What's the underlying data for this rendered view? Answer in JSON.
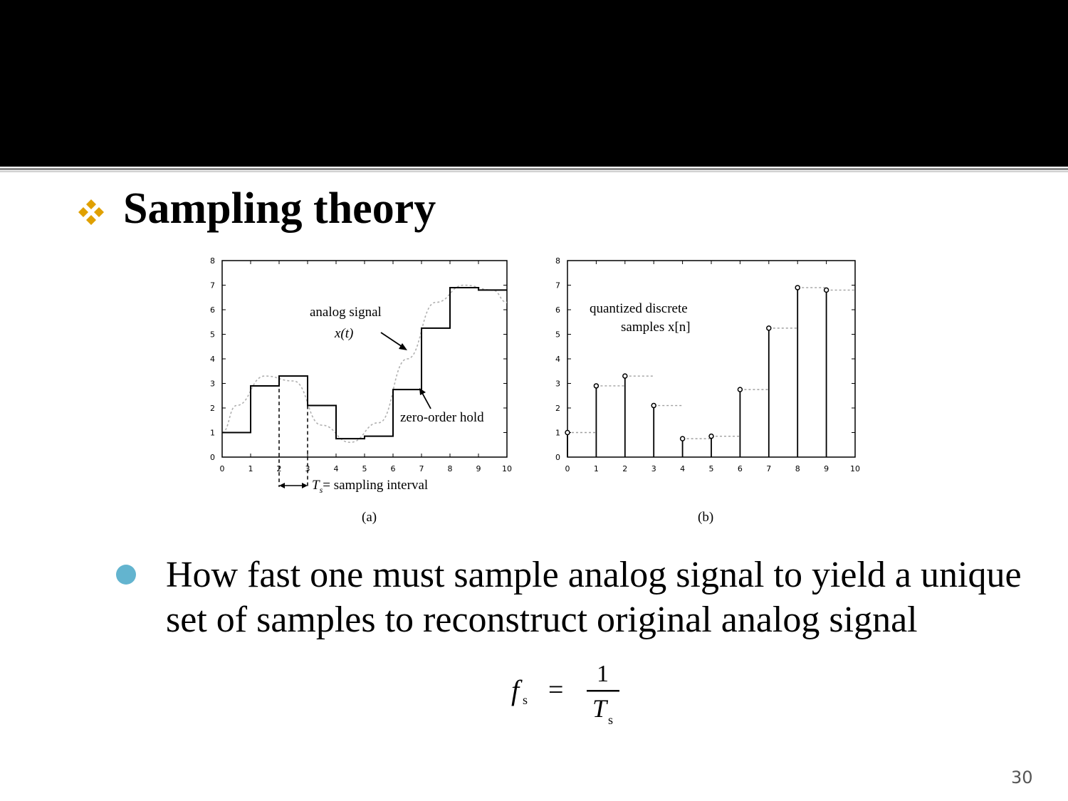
{
  "slide": {
    "heading": "Sampling theory",
    "bullet_text": "How fast one must sample analog signal to yield a unique set of samples to reconstruct original analog signal",
    "slide_number": "30",
    "accent_color": "#e0a000",
    "bullet_color": "#63b4cf"
  },
  "formula": {
    "lhs": "f",
    "lhs_sub": "s",
    "eq": "=",
    "numerator": "1",
    "denominator": "T",
    "den_sub": "s"
  },
  "figure": {
    "a": {
      "caption": "(a)",
      "label_analog": "analog signal",
      "label_xt": "x(t)",
      "label_zoh": "zero-order hold",
      "label_ts_prefix": "T",
      "label_ts_sub": "s",
      "label_ts_rest": "= sampling  interval"
    },
    "b": {
      "caption": "(b)",
      "label_line1": "quantized discrete",
      "label_line2": "samples  x[n]"
    }
  },
  "chart_data": [
    {
      "type": "line",
      "panel": "a",
      "x_ticks": [
        0,
        1,
        2,
        3,
        4,
        5,
        6,
        7,
        8,
        9,
        10
      ],
      "y_ticks": [
        0,
        1,
        2,
        3,
        4,
        5,
        6,
        7,
        8
      ],
      "xlim": [
        0,
        10
      ],
      "ylim": [
        0,
        8
      ],
      "series": [
        {
          "values_x": [
            0,
            1,
            2,
            3,
            4,
            5,
            6,
            7,
            8,
            9,
            10
          ],
          "values_y": [
            1.0,
            2.9,
            3.3,
            2.1,
            0.75,
            0.85,
            2.75,
            5.25,
            6.9,
            6.8,
            6.8
          ]
        }
      ]
    },
    {
      "type": "scatter",
      "panel": "b",
      "x_ticks": [
        0,
        1,
        2,
        3,
        4,
        5,
        6,
        7,
        8,
        9,
        10
      ],
      "y_ticks": [
        0,
        1,
        2,
        3,
        4,
        5,
        6,
        7,
        8
      ],
      "xlim": [
        0,
        10
      ],
      "ylim": [
        0,
        8
      ],
      "series": [
        {
          "values_x": [
            0,
            1,
            2,
            3,
            4,
            5,
            6,
            7,
            8,
            9
          ],
          "values_y": [
            1.0,
            2.9,
            3.3,
            2.1,
            0.75,
            0.85,
            2.75,
            5.25,
            6.9,
            6.8
          ]
        }
      ]
    }
  ]
}
